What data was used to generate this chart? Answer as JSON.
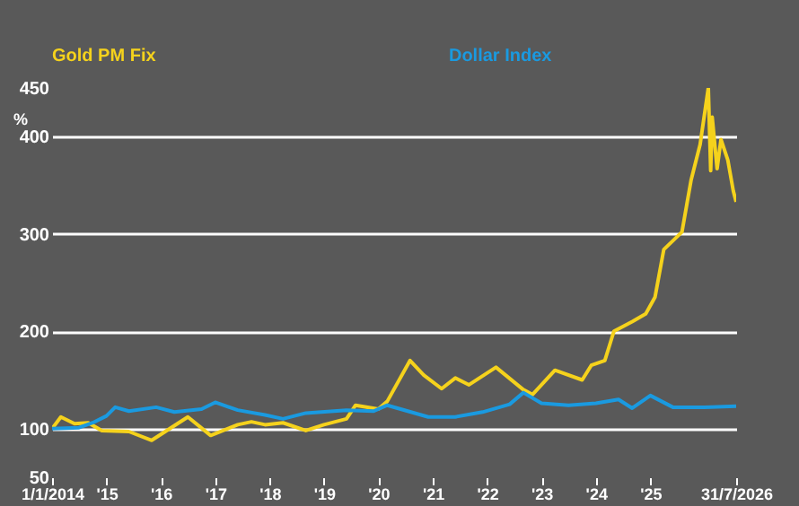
{
  "chart_data": {
    "type": "line",
    "ylabel": "%",
    "legend": "top",
    "grid": "y",
    "line_style": "solid",
    "marker": "none",
    "xlim": [
      "2014-01-01",
      "2026-07-31"
    ],
    "xticks": [
      {
        "value": "2014-01-01",
        "label": "1/1/2014"
      },
      {
        "value": "2015-01-01",
        "label": "'15"
      },
      {
        "value": "2016-01-01",
        "label": "'16"
      },
      {
        "value": "2017-01-01",
        "label": "'17"
      },
      {
        "value": "2018-01-01",
        "label": "'18"
      },
      {
        "value": "2019-01-01",
        "label": "'19"
      },
      {
        "value": "2020-01-01",
        "label": "'20"
      },
      {
        "value": "2021-01-01",
        "label": "'21"
      },
      {
        "value": "2022-01-01",
        "label": "'22"
      },
      {
        "value": "2023-01-01",
        "label": "'23"
      },
      {
        "value": "2024-01-01",
        "label": "'24"
      },
      {
        "value": "2025-01-01",
        "label": "'25"
      },
      {
        "value": "2026-07-31",
        "label": "31/7/2026"
      }
    ],
    "ylim": [
      50,
      450
    ],
    "yticks": [
      50,
      100,
      200,
      300,
      400,
      450
    ],
    "series": [
      {
        "name": "Gold PM Fix",
        "color": "#f5d21c",
        "x": [
          "2014-01-01",
          "2014-03-01",
          "2014-06-01",
          "2014-09-01",
          "2014-12-01",
          "2015-06-01",
          "2015-11-01",
          "2016-07-01",
          "2016-12-01",
          "2017-06-01",
          "2017-09-01",
          "2017-12-01",
          "2018-04-01",
          "2018-09-01",
          "2019-01-01",
          "2019-06-01",
          "2019-08-01",
          "2020-01-01",
          "2020-03-01",
          "2020-08-01",
          "2020-11-01",
          "2021-03-01",
          "2021-06-01",
          "2021-09-01",
          "2022-03-01",
          "2022-09-01",
          "2022-11-01",
          "2023-04-01",
          "2023-10-01",
          "2023-12-01",
          "2024-03-01",
          "2024-05-01",
          "2024-09-01",
          "2024-12-01",
          "2025-02-01",
          "2025-04-01",
          "2025-08-01",
          "2025-10-01",
          "2025-12-01",
          "2026-01-25",
          "2026-02-10",
          "2026-02-20",
          "2026-03-25",
          "2026-04-20",
          "2026-06-05",
          "2026-07-12",
          "2026-07-31"
        ],
        "values": [
          100,
          112,
          105,
          106,
          98,
          97,
          88,
          112,
          93,
          104,
          107,
          104,
          106,
          98,
          104,
          110,
          124,
          120,
          128,
          170,
          155,
          141,
          152,
          145,
          163,
          140,
          135,
          160,
          150,
          165,
          170,
          200,
          210,
          218,
          235,
          284,
          302,
          355,
          392,
          450,
          365,
          420,
          367,
          397,
          376,
          344,
          333
        ]
      },
      {
        "name": "Dollar Index",
        "color": "#1a9ae0",
        "x": [
          "2014-01-01",
          "2014-07-01",
          "2014-10-01",
          "2015-01-01",
          "2015-03-01",
          "2015-06-01",
          "2015-12-01",
          "2016-04-01",
          "2016-10-01",
          "2017-01-01",
          "2017-06-01",
          "2017-12-01",
          "2018-04-01",
          "2018-09-01",
          "2019-06-01",
          "2019-12-01",
          "2020-03-01",
          "2020-12-01",
          "2021-06-01",
          "2021-12-01",
          "2022-06-01",
          "2022-09-01",
          "2023-01-01",
          "2023-07-01",
          "2024-01-01",
          "2024-06-01",
          "2024-09-01",
          "2025-01-01",
          "2025-06-01",
          "2026-01-01",
          "2026-07-31"
        ],
        "values": [
          100,
          101,
          106,
          113,
          122,
          118,
          122,
          117,
          120,
          127,
          119,
          114,
          110,
          116,
          119,
          118,
          124,
          112,
          112,
          117,
          125,
          137,
          126,
          124,
          126,
          130,
          121,
          134,
          122,
          122,
          123
        ]
      }
    ]
  }
}
